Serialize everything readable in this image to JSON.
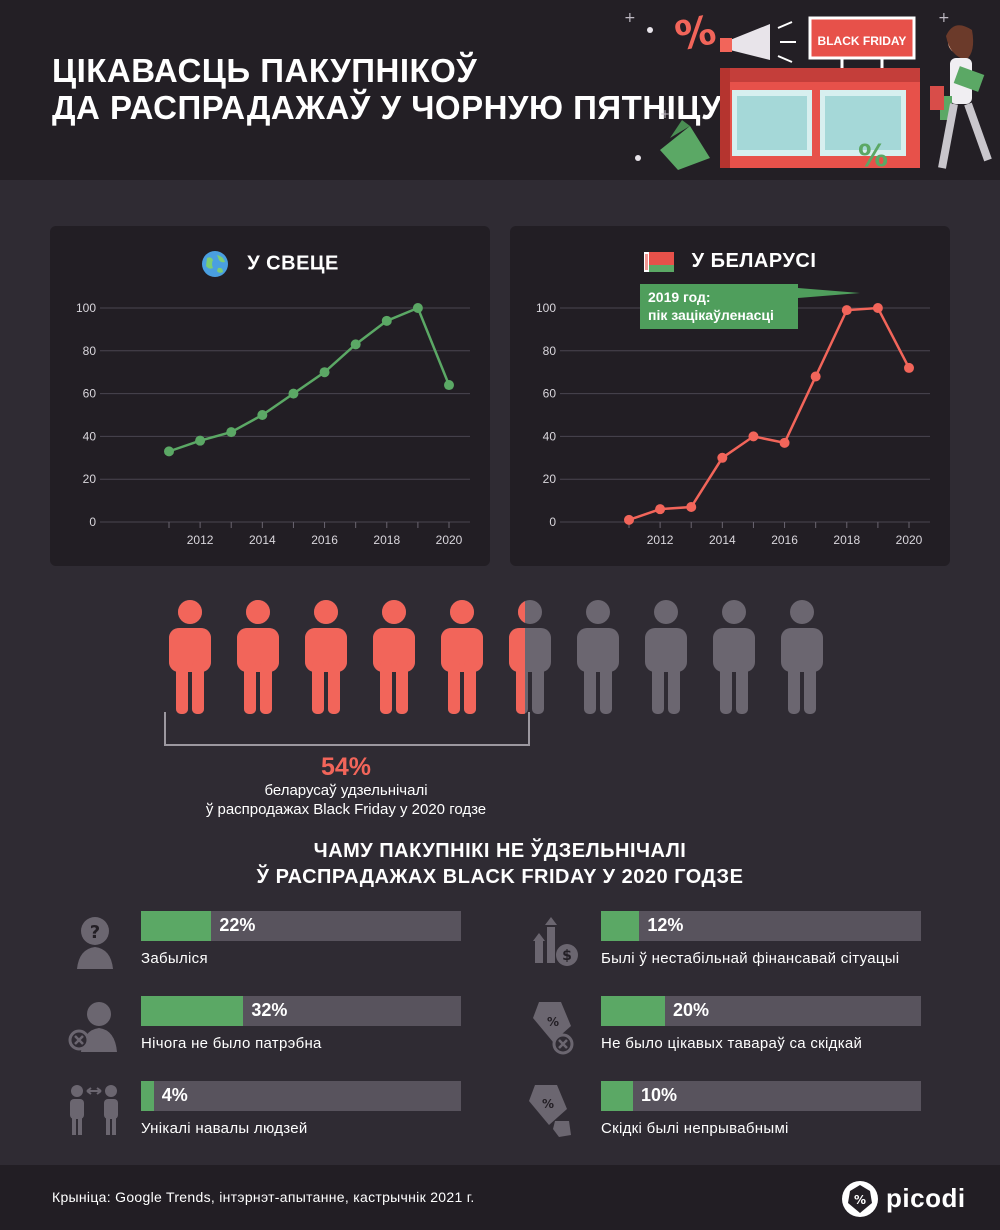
{
  "header": {
    "title_line1": "ЦІКАВАСЦЬ ПАКУПНІКОЎ",
    "title_line2": "ДА РАСПРАДАЖАЎ У ЧОРНУЮ ПЯТНІЦУ",
    "illustration_sign": "BLACK FRIDAY"
  },
  "colors": {
    "background": "#2f2b33",
    "panel": "#221e24",
    "green": "#5ba865",
    "red": "#f2655a",
    "gray": "#58535d"
  },
  "chart_data": [
    {
      "type": "line",
      "title": "У СВЕЦЕ",
      "title_icon": "globe-icon",
      "x": [
        2011,
        2012,
        2013,
        2014,
        2015,
        2016,
        2017,
        2018,
        2019,
        2020
      ],
      "series": [
        {
          "values": [
            33,
            38,
            42,
            50,
            60,
            70,
            83,
            94,
            100,
            64
          ],
          "color": "#5ba865"
        }
      ],
      "xticks": [
        "2012",
        "2014",
        "2016",
        "2018",
        "2020"
      ],
      "yticks": [
        "0",
        "20",
        "40",
        "60",
        "80",
        "100"
      ],
      "ylim": [
        0,
        100
      ],
      "grid": true
    },
    {
      "type": "line",
      "title": "У БЕЛАРУСІ",
      "title_icon": "belarus-flag-icon",
      "x": [
        2011,
        2012,
        2013,
        2014,
        2015,
        2016,
        2017,
        2018,
        2019,
        2020
      ],
      "series": [
        {
          "values": [
            1,
            6,
            7,
            30,
            40,
            37,
            68,
            99,
            100,
            72
          ],
          "color": "#f2655a"
        }
      ],
      "xticks": [
        "2012",
        "2014",
        "2016",
        "2018",
        "2020"
      ],
      "yticks": [
        "0",
        "20",
        "40",
        "60",
        "80",
        "100"
      ],
      "ylim": [
        0,
        100
      ],
      "grid": true,
      "annotation": {
        "line1": "2019 год:",
        "line2": "пік зацікаўленасці"
      }
    }
  ],
  "participation": {
    "percent_value": 54,
    "percent": "54%",
    "desc_line1": "беларусаў удзельнічалі",
    "desc_line2": "ў распродажах Black Friday у 2020 годзе",
    "people_total": 10
  },
  "why": {
    "title_line1": "ЧАМУ ПАКУПНІКІ НЕ ЎДЗЕЛЬНІЧАЛІ",
    "title_line2": "Ў РАСПРАДАЖАХ BLACK FRIDAY У 2020 ГОДЗЕ",
    "reasons": [
      {
        "value": 22,
        "pct": "22%",
        "label": "Забыліся",
        "icon": "question-head-icon"
      },
      {
        "value": 12,
        "pct": "12%",
        "label": "Былі ў нестабільнай фінансавай сітуацыі",
        "icon": "money-chart-icon"
      },
      {
        "value": 32,
        "pct": "32%",
        "label": "Нічога не было патрэбна",
        "icon": "person-cross-icon"
      },
      {
        "value": 20,
        "pct": "20%",
        "label": "Не было цікавых тавараў са скідкай",
        "icon": "tag-cross-icon"
      },
      {
        "value": 4,
        "pct": "4%",
        "label": "Унікалі навалы людзей",
        "icon": "people-distance-icon"
      },
      {
        "value": 10,
        "pct": "10%",
        "label": "Скідкі былі непрывабнымі",
        "icon": "tag-thumb-down-icon"
      }
    ]
  },
  "footer": {
    "source": "Крыніца: Google Trends, інтэрнэт-апытанне, кастрычнік 2021 г.",
    "logo": "picodi"
  }
}
